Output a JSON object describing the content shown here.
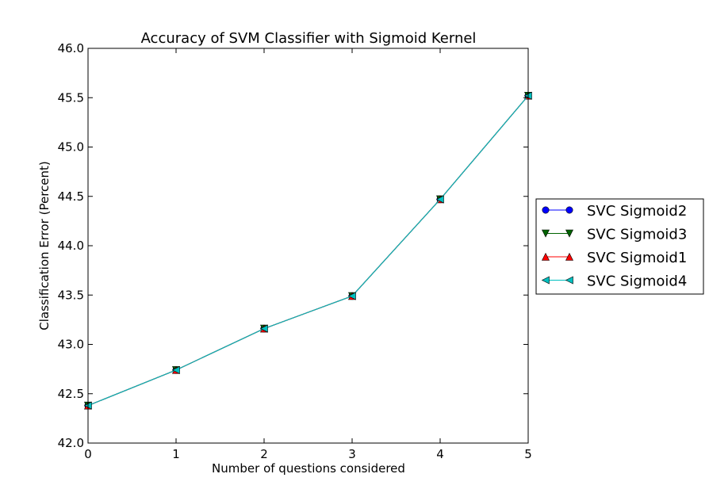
{
  "chart_data": {
    "type": "line",
    "title": "Accuracy of SVM Classifier with Sigmoid Kernel",
    "xlabel": "Number of questions considered",
    "ylabel": "Classification Error (Percent)",
    "xlim": [
      0,
      5
    ],
    "ylim": [
      42.0,
      46.0
    ],
    "xticks": [
      "0",
      "1",
      "2",
      "3",
      "4",
      "5"
    ],
    "yticks": [
      "42.0",
      "42.5",
      "43.0",
      "43.5",
      "44.0",
      "44.5",
      "45.0",
      "45.5",
      "46.0"
    ],
    "grid": false,
    "legend_position": "outside-right",
    "x": [
      0,
      1,
      2,
      3,
      4,
      5
    ],
    "series": [
      {
        "name": "SVC Sigmoid2",
        "color": "#0000ff",
        "marker": "circle",
        "values": [
          42.38,
          42.74,
          43.16,
          43.49,
          44.47,
          45.52
        ]
      },
      {
        "name": "SVC Sigmoid3",
        "color": "#006400",
        "marker": "triangle-down",
        "values": [
          42.38,
          42.74,
          43.16,
          43.49,
          44.47,
          45.52
        ]
      },
      {
        "name": "SVC Sigmoid1",
        "color": "#ff0000",
        "marker": "triangle-up",
        "values": [
          42.38,
          42.74,
          43.16,
          43.49,
          44.47,
          45.52
        ]
      },
      {
        "name": "SVC Sigmoid4",
        "color": "#00bfbf",
        "marker": "triangle-left",
        "values": [
          42.38,
          42.74,
          43.16,
          43.49,
          44.47,
          45.52
        ]
      }
    ]
  }
}
